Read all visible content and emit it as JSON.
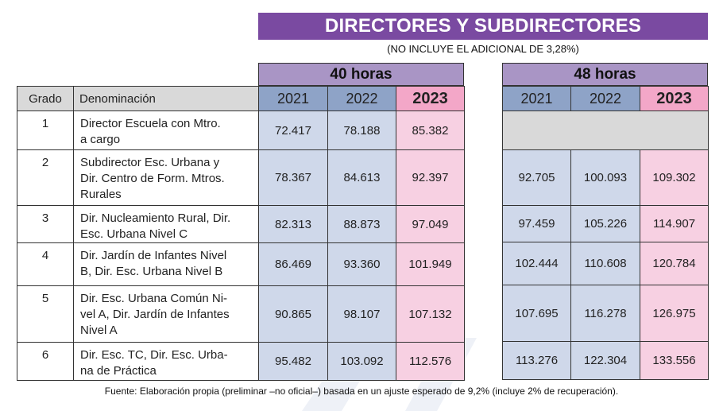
{
  "title": "DIRECTORES Y SUBDIRECTORES",
  "subtitle": "(NO INCLUYE EL ADICIONAL DE 3,28%)",
  "groups": {
    "h40": "40 horas",
    "h48": "48 horas"
  },
  "headers": {
    "grado": "Grado",
    "denominacion": "Denominación",
    "years": [
      "2021",
      "2022",
      "2023"
    ]
  },
  "rows": [
    {
      "grado": "1",
      "denominacion": [
        "Director Escuela con Mtro.",
        "a cargo"
      ],
      "h40": [
        "72.417",
        "78.188",
        "85.382"
      ],
      "h48": null
    },
    {
      "grado": "2",
      "denominacion": [
        "Subdirector Esc. Urbana y",
        "Dir. Centro de Form. Mtros.",
        "Rurales"
      ],
      "h40": [
        "78.367",
        "84.613",
        "92.397"
      ],
      "h48": [
        "92.705",
        "100.093",
        "109.302"
      ]
    },
    {
      "grado": "3",
      "denominacion": [
        "Dir. Nucleamiento Rural, Dir.",
        "Esc. Urbana Nivel C"
      ],
      "h40": [
        "82.313",
        "88.873",
        "97.049"
      ],
      "h48": [
        "97.459",
        "105.226",
        "114.907"
      ]
    },
    {
      "grado": "4",
      "denominacion": [
        "Dir. Jardín de Infantes Nivel",
        "B, Dir. Esc. Urbana Nivel B"
      ],
      "h40": [
        "86.469",
        "93.360",
        "101.949"
      ],
      "h48": [
        "102.444",
        "110.608",
        "120.784"
      ]
    },
    {
      "grado": "5",
      "denominacion": [
        "Dir. Esc. Urbana Común Ni-",
        "vel A, Dir. Jardín de Infantes",
        "Nivel A"
      ],
      "h40": [
        "90.865",
        "98.107",
        "107.132"
      ],
      "h48": [
        "107.695",
        "116.278",
        "126.975"
      ]
    },
    {
      "grado": "6",
      "denominacion": [
        "Dir. Esc. TC, Dir. Esc. Urba-",
        "na de Práctica"
      ],
      "h40": [
        "95.482",
        "103.092",
        "112.576"
      ],
      "h48": [
        "113.276",
        "122.304",
        "133.556"
      ]
    }
  ],
  "footnote": "Fuente: Elaboración propia (preliminar –no oficial–) basada en un ajuste esperado de 9,2% (incluye 2% de recuperación).",
  "colors": {
    "banner": "#7a4aa1",
    "group_header": "#a995c5",
    "year_header": "#8ea3c7",
    "year_2023_header": "#f3a7c8",
    "value_cell": "#cfd8ea",
    "value_2023_cell": "#f7d0e2",
    "grey_cell": "#d9d9d9"
  }
}
